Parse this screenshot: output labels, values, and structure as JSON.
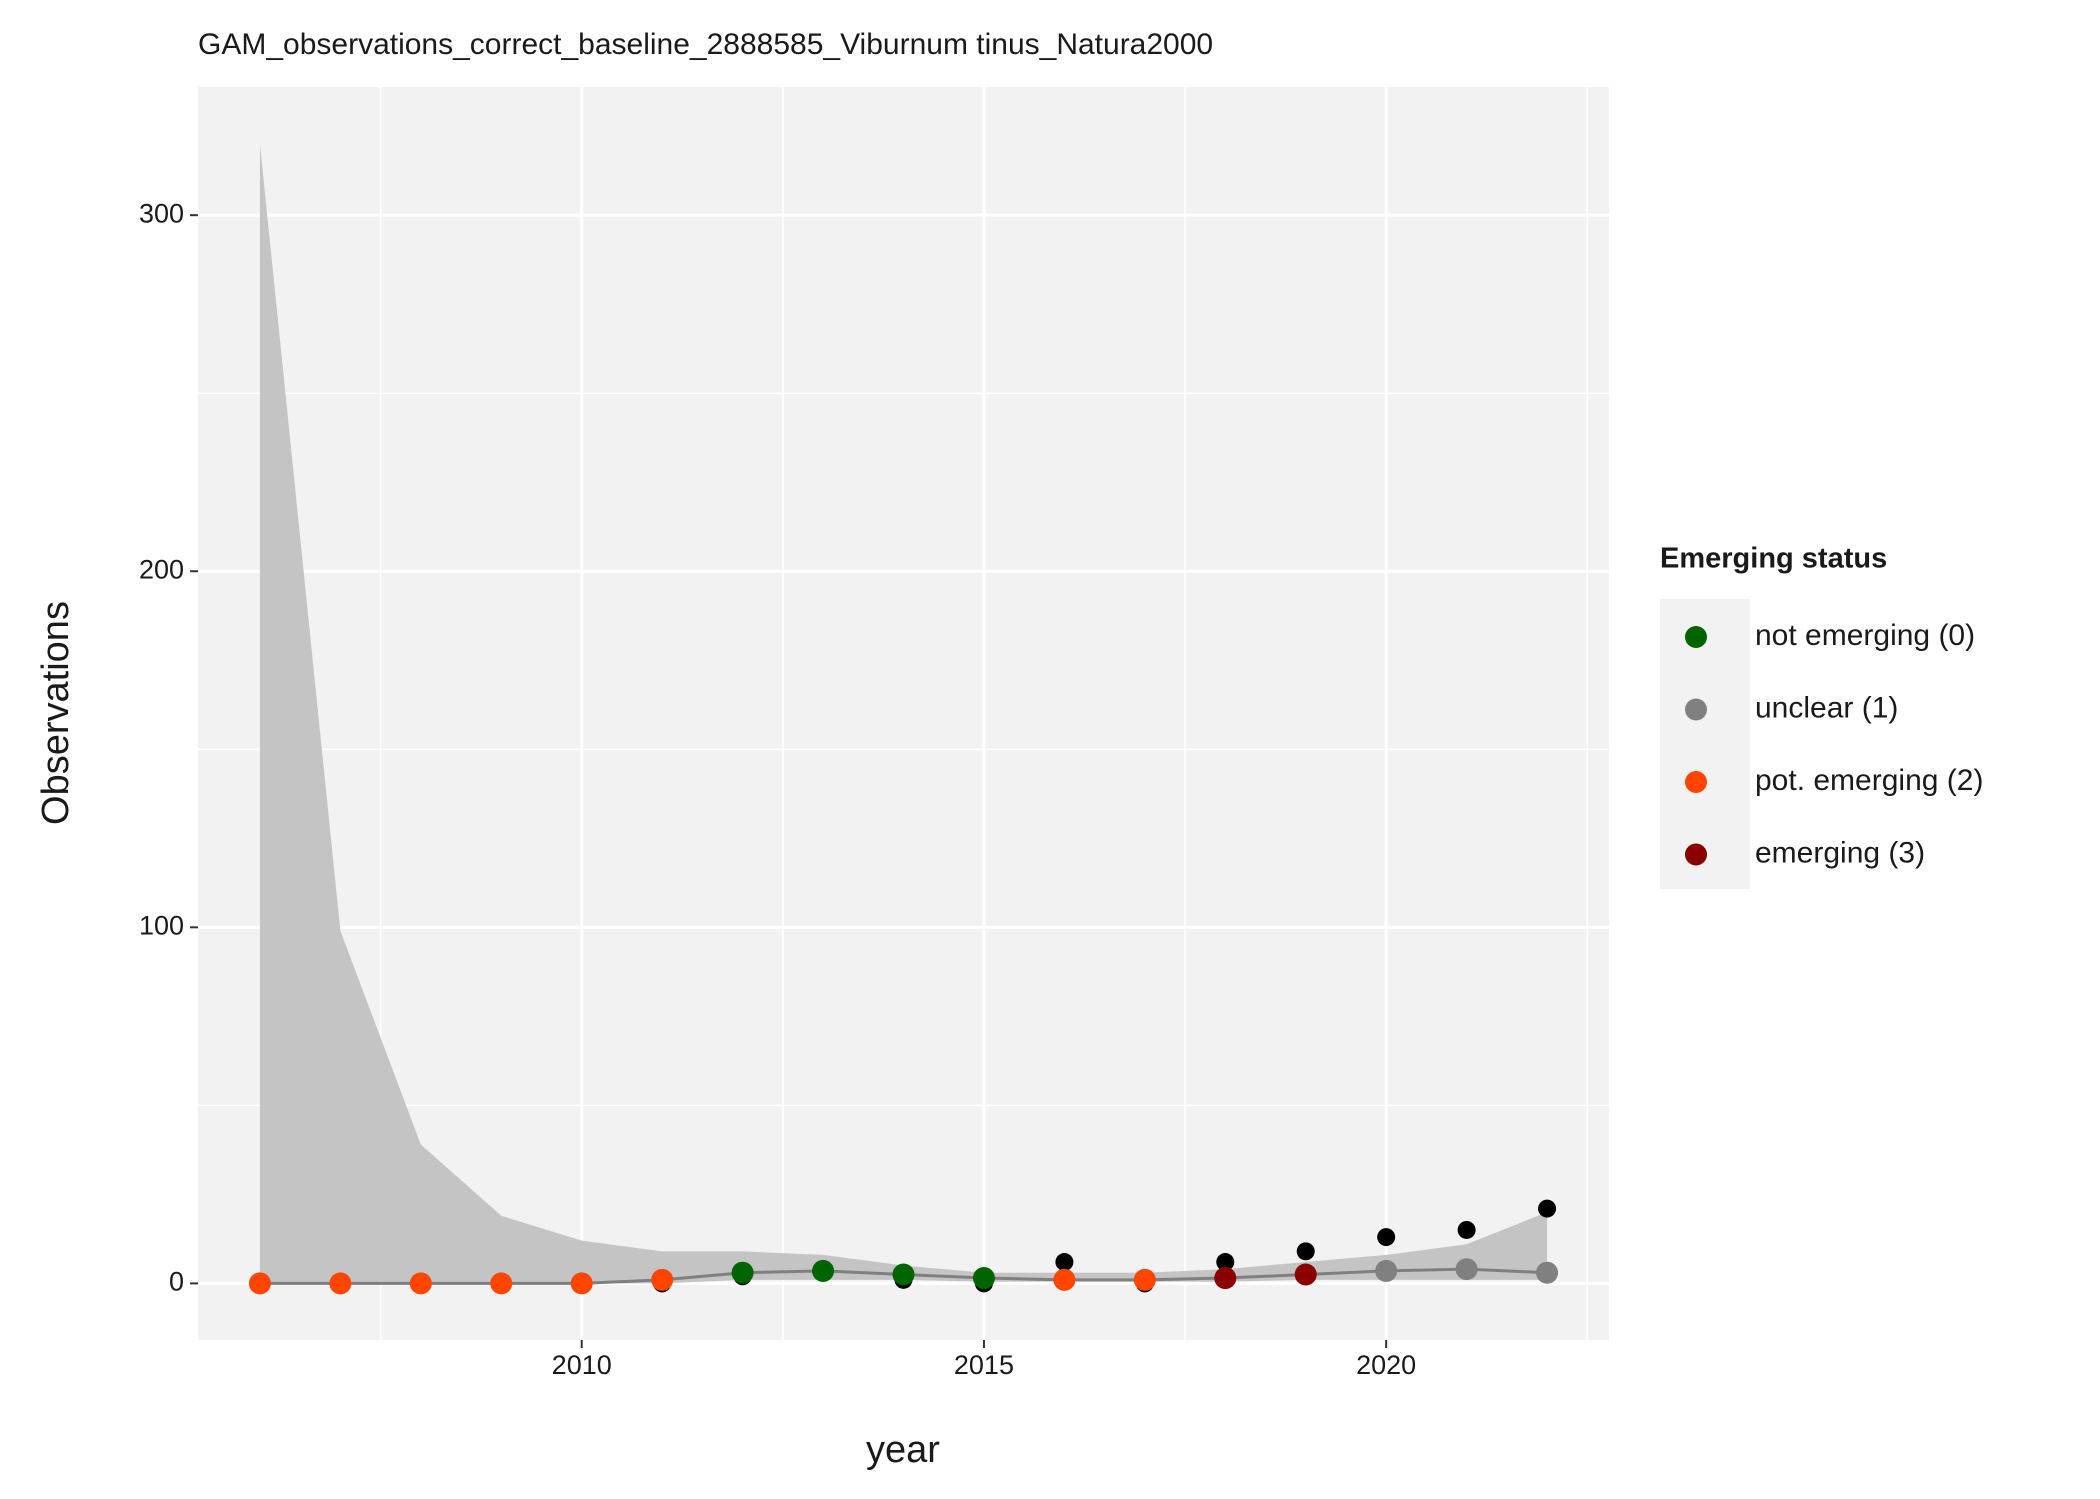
{
  "chart_data": {
    "type": "gam",
    "title": "GAM_observations_correct_baseline_2888585_Viburnum tinus_Natura2000",
    "x_label": "year",
    "y_label": "Observations",
    "x": [
      2006,
      2007,
      2008,
      2009,
      2010,
      2011,
      2012,
      2013,
      2014,
      2015,
      2016,
      2017,
      2018,
      2019,
      2020,
      2021,
      2022
    ],
    "observations": {
      "color": "#000000",
      "values": [
        0,
        0,
        0,
        0,
        0,
        0,
        2,
        3,
        1,
        0,
        6,
        0,
        6,
        9,
        13,
        15,
        21
      ]
    },
    "fit": {
      "color": "#7f7f7f",
      "values": [
        0,
        0,
        0,
        0,
        0,
        1,
        3,
        3.5,
        2.5,
        1.5,
        1,
        1,
        1.5,
        2.5,
        3.5,
        4,
        3
      ]
    },
    "upper": [
      320,
      99,
      39,
      19,
      12,
      9,
      9,
      8,
      5,
      3,
      3,
      3,
      4,
      6,
      8,
      11,
      20
    ],
    "lower": [
      0,
      0,
      0,
      0,
      0,
      0,
      1,
      1,
      1,
      0.5,
      0.5,
      0.5,
      0.5,
      1,
      1,
      1,
      1
    ],
    "ribbon_color": "#c4c4c4",
    "status": [
      2,
      2,
      2,
      2,
      2,
      2,
      0,
      0,
      0,
      0,
      2,
      2,
      3,
      3,
      1,
      1,
      1
    ],
    "legend": {
      "title": "Emerging status",
      "items": [
        {
          "label": "not emerging (0)",
          "color": "#006400"
        },
        {
          "label": "unclear (1)",
          "color": "#808080"
        },
        {
          "label": "pot. emerging (2)",
          "color": "#FF4500"
        },
        {
          "label": "emerging (3)",
          "color": "#8B0000"
        }
      ]
    },
    "xlim": [
      2005.23,
      2022.77
    ],
    "ylim": [
      -15.9,
      336
    ],
    "xticks": [
      2010,
      2015,
      2020
    ],
    "yticks": [
      0,
      100,
      200,
      300
    ],
    "grid": true
  }
}
